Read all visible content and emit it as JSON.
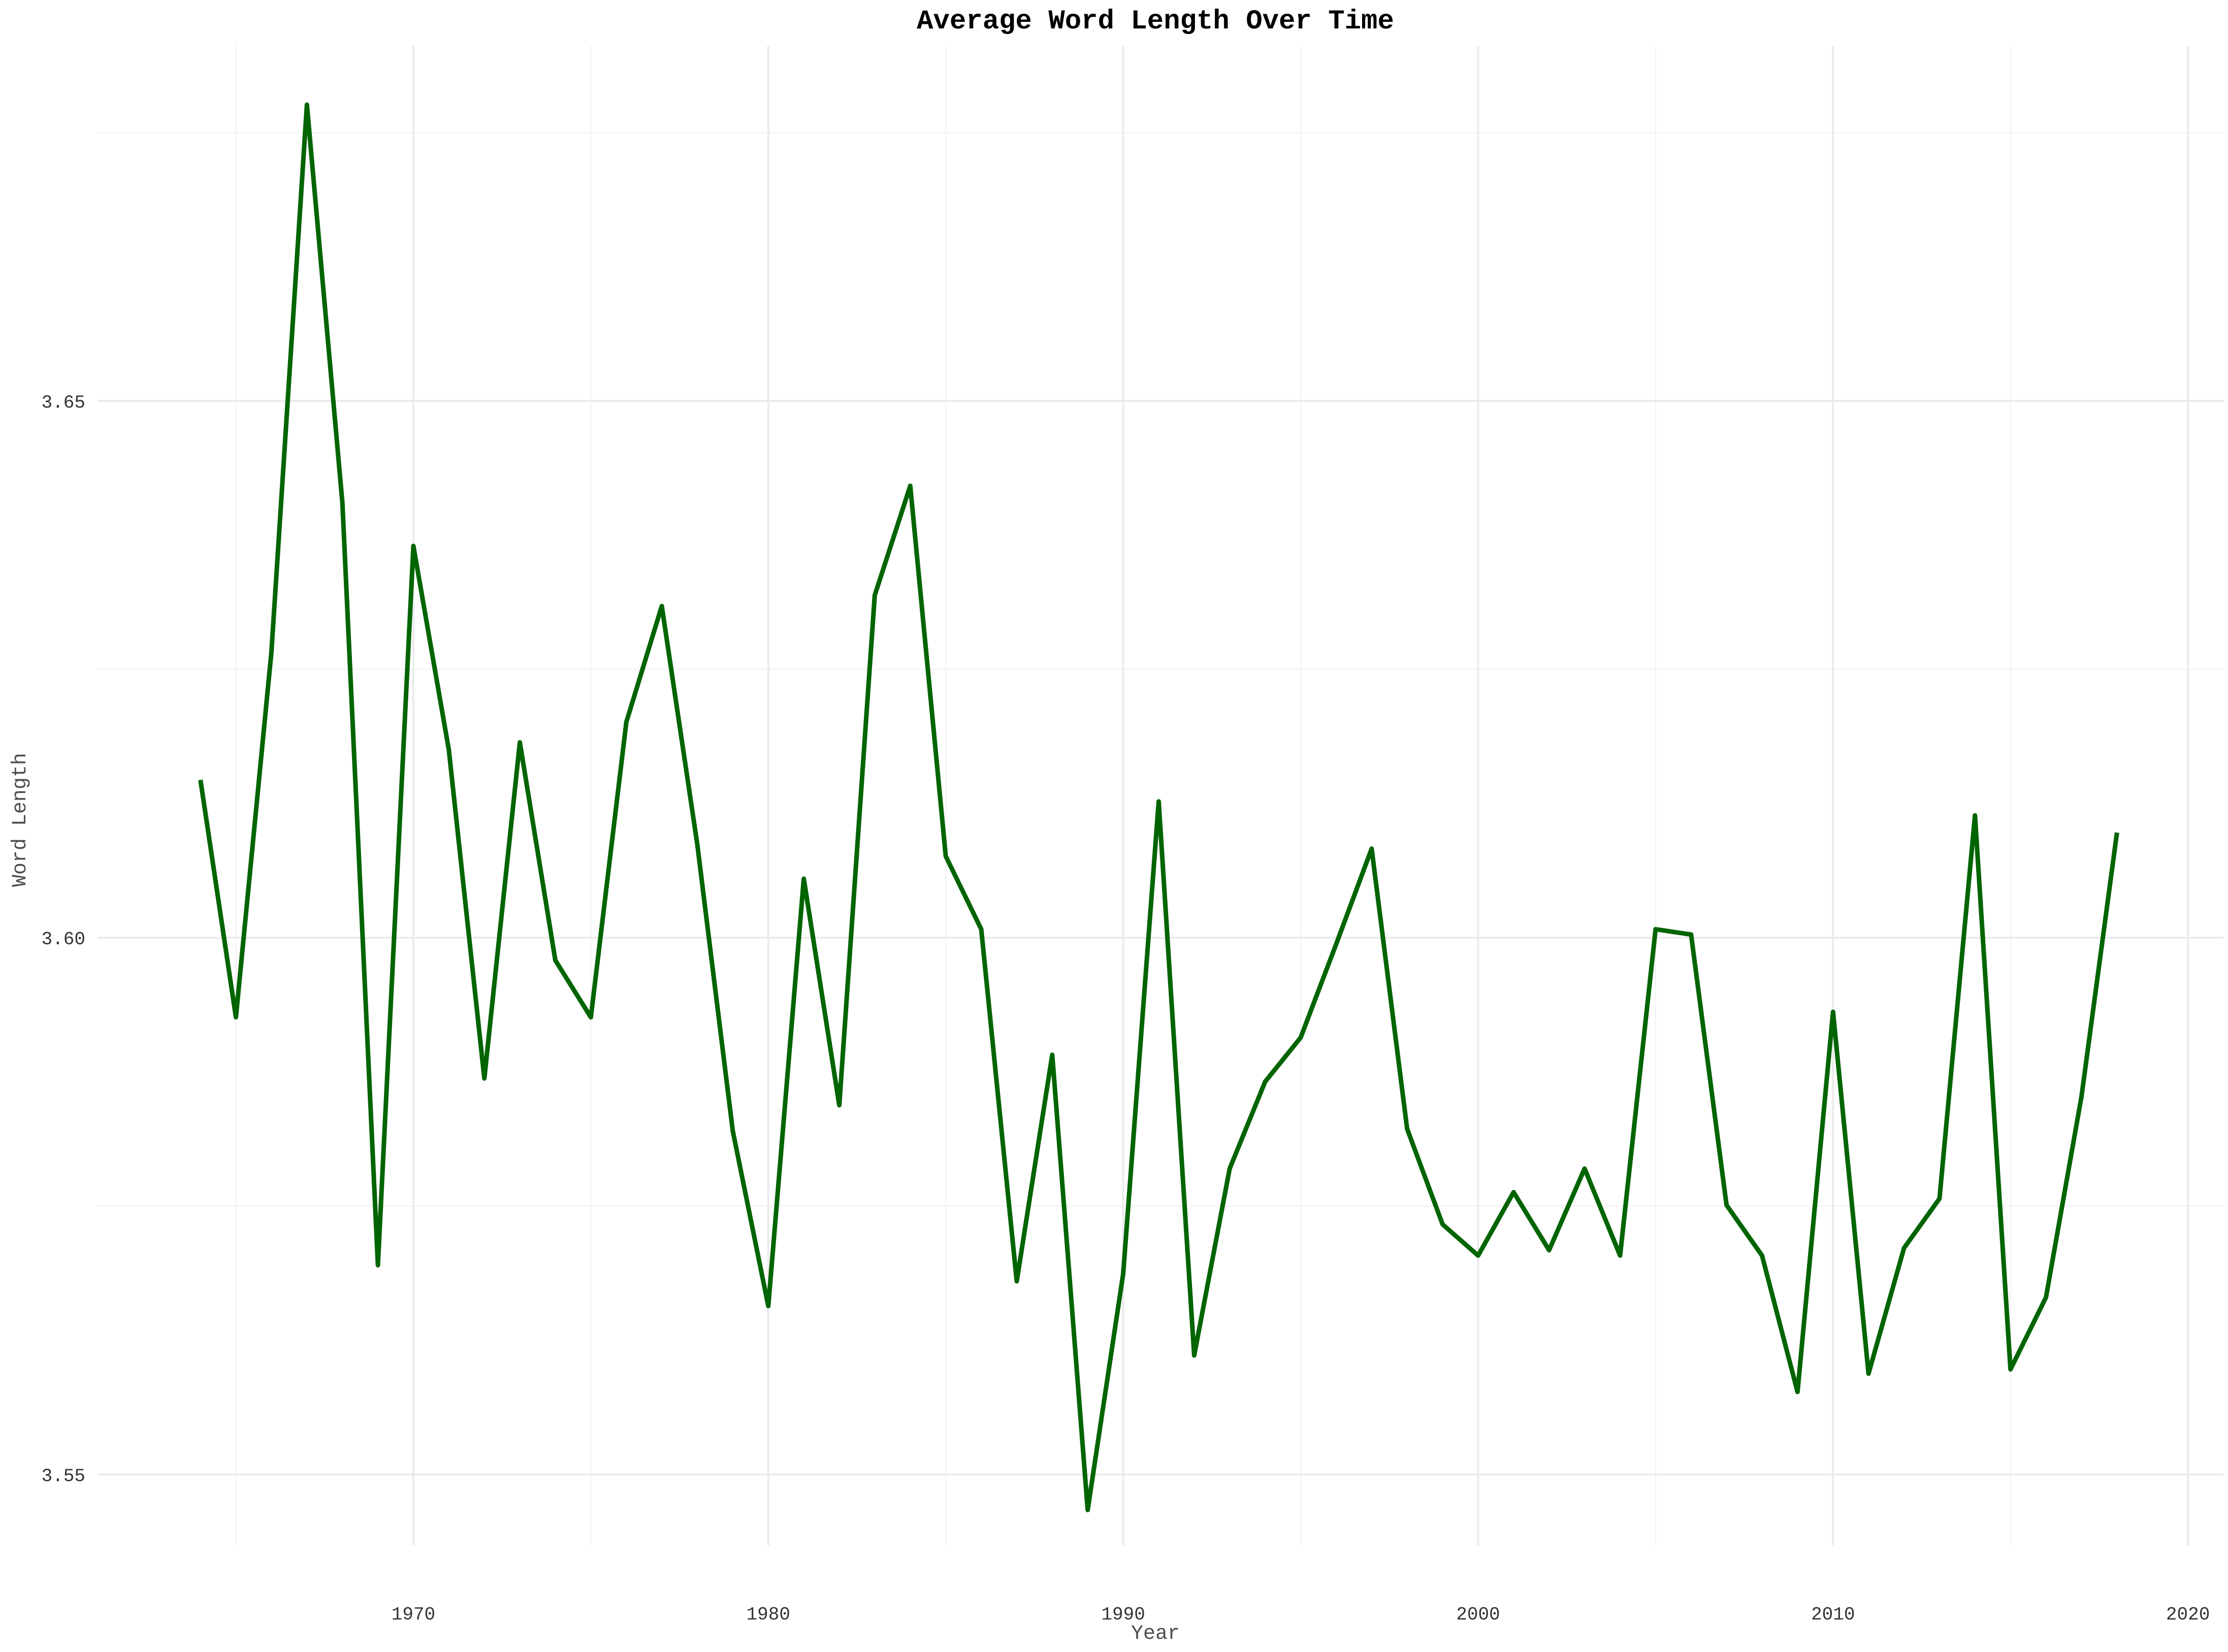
{
  "chart_data": {
    "type": "line",
    "title": "Average Word Length Over Time",
    "xlabel": "Year",
    "ylabel": "Word Length",
    "x_ticks": [
      1970,
      1980,
      1990,
      2000,
      2010,
      2020
    ],
    "y_ticks": [
      "3.55",
      "3.60",
      "3.65"
    ],
    "xlim": [
      1961.1,
      2021.0
    ],
    "ylim": [
      3.5434,
      3.6831
    ],
    "grid": true,
    "legend": "none",
    "series": [
      {
        "color": "#006400",
        "x": [
          1964,
          1965,
          1966,
          1967,
          1968,
          1969,
          1970,
          1971,
          1972,
          1973,
          1974,
          1975,
          1976,
          1977,
          1978,
          1979,
          1980,
          1981,
          1982,
          1983,
          1984,
          1985,
          1986,
          1987,
          1988,
          1989,
          1990,
          1991,
          1992,
          1993,
          1994,
          1995,
          1996,
          1997,
          1998,
          1999,
          2000,
          2001,
          2002,
          2003,
          2004,
          2005,
          2006,
          2007,
          2008,
          2009,
          2010,
          2011,
          2012,
          2013,
          2014,
          2015,
          2016,
          2017,
          2018
        ],
        "y": [
          3.6147,
          3.5926,
          3.6266,
          3.6776,
          3.6405,
          3.5695,
          3.6365,
          3.6175,
          3.5869,
          3.6182,
          3.5979,
          3.5926,
          3.6201,
          3.6309,
          3.6087,
          3.582,
          3.5657,
          3.6055,
          3.5844,
          3.6319,
          3.6421,
          3.6076,
          3.6008,
          3.568,
          3.5891,
          3.5467,
          3.5687,
          3.6127,
          3.5611,
          3.5785,
          3.5866,
          3.5907,
          3.5994,
          3.6083,
          3.5822,
          3.5733,
          3.5704,
          3.5763,
          3.5709,
          3.5785,
          3.5704,
          3.6008,
          3.6003,
          3.5751,
          3.5704,
          3.5577,
          3.5931,
          3.5594,
          3.5711,
          3.5757,
          3.6114,
          3.5598,
          3.5665,
          3.5852,
          3.6098
        ]
      }
    ]
  }
}
